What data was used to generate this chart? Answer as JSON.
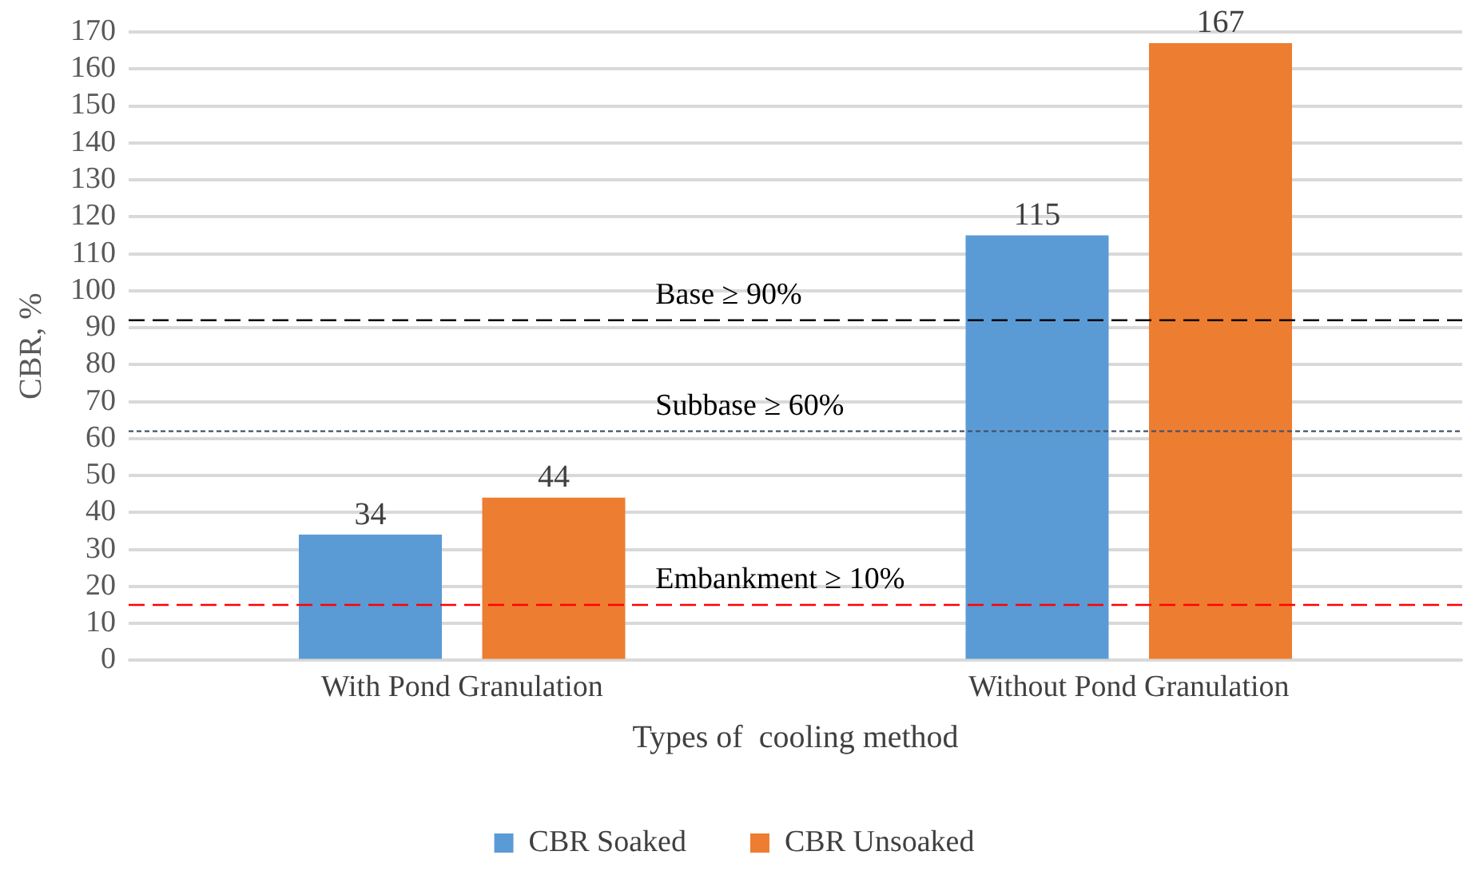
{
  "chart_data": {
    "type": "bar",
    "xlabel": "Types of  cooling method",
    "ylabel": "CBR, %",
    "categories": [
      "With Pond Granulation",
      "Without Pond Granulation"
    ],
    "series": [
      {
        "name": "CBR Soaked",
        "color": "#5b9bd5",
        "values": [
          34,
          115
        ]
      },
      {
        "name": "CBR Unsoaked",
        "color": "#ed7d31",
        "values": [
          44,
          167
        ]
      }
    ],
    "ylim": [
      0,
      170
    ],
    "yticks": [
      0,
      10,
      20,
      30,
      40,
      50,
      60,
      70,
      80,
      90,
      100,
      110,
      120,
      130,
      140,
      150,
      160,
      170
    ],
    "grid": "y",
    "legend": "bottom",
    "data_labels": true,
    "ref_lines": [
      {
        "axis": "y",
        "value": 92,
        "label": "Base ≥ 90%",
        "color": "#000000",
        "line_style": "dashed"
      },
      {
        "axis": "y",
        "value": 62,
        "label": "Subbase ≥ 60%",
        "color": "#44546a",
        "line_style": "dotted"
      },
      {
        "axis": "y",
        "value": 15,
        "label": "Embankment ≥ 10%",
        "color": "#ff0000",
        "line_style": "dashed"
      }
    ]
  }
}
